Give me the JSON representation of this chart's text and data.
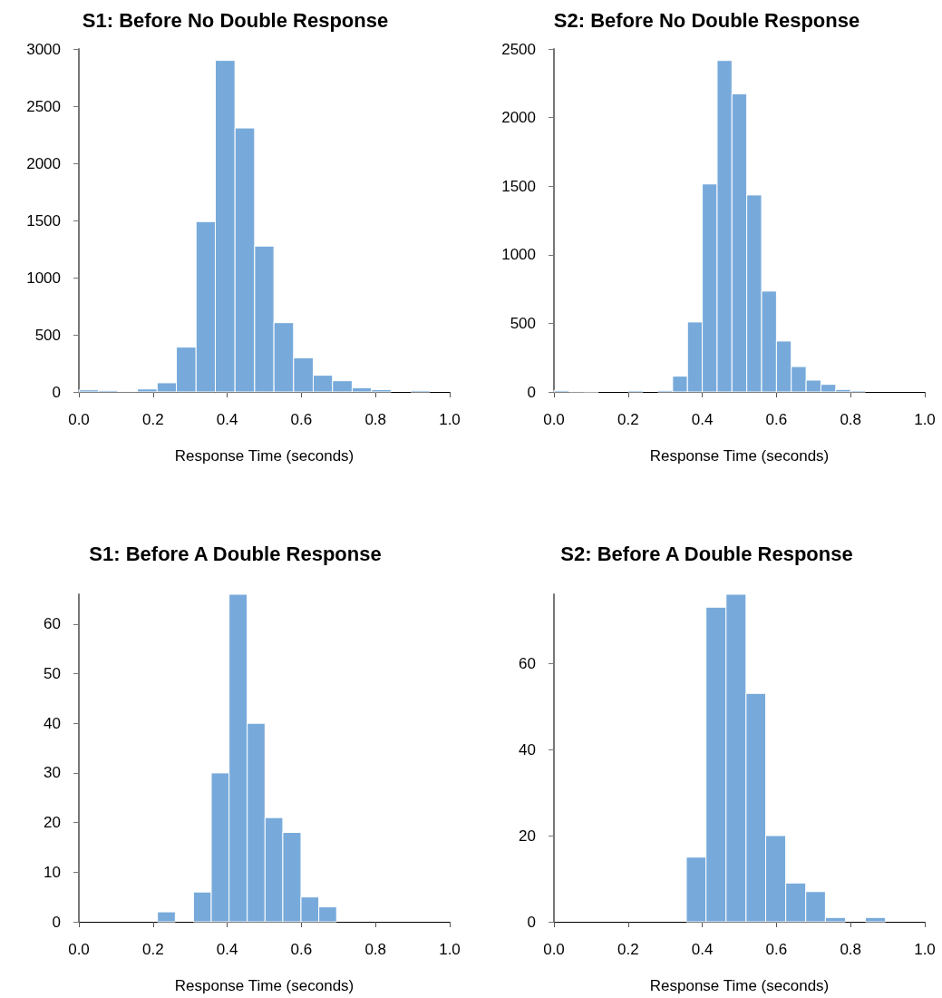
{
  "chart_data": [
    {
      "type": "histogram",
      "title": "S1: Before No Double Response",
      "xlabel": "Response Time (seconds)",
      "color": "#77aadb",
      "bins": [
        0,
        0.053,
        0.105,
        0.158,
        0.211,
        0.263,
        0.316,
        0.368,
        0.421,
        0.474,
        0.526,
        0.579,
        0.632,
        0.684,
        0.737,
        0.789,
        0.842,
        0.895,
        0.947
      ],
      "values": [
        18,
        13,
        5,
        26,
        80,
        392,
        1490,
        2900,
        2309,
        1276,
        606,
        299,
        146,
        98,
        37,
        21,
        0,
        13
      ],
      "xlim": [
        0,
        1
      ],
      "xticks": [
        {
          "value": 0,
          "label": "0.0"
        },
        {
          "value": 0.2,
          "label": "0.2"
        },
        {
          "value": 0.4,
          "label": "0.4"
        },
        {
          "value": 0.6,
          "label": "0.6"
        },
        {
          "value": 0.8,
          "label": "0.8"
        },
        {
          "value": 1,
          "label": "1.0"
        }
      ],
      "ylim": [
        0,
        3000
      ],
      "yticks": [
        0,
        500,
        1000,
        1500,
        2000,
        2500,
        3000
      ]
    },
    {
      "type": "histogram",
      "title": "S2: Before No Double Response",
      "xlabel": "Response Time (seconds)",
      "color": "#77aadb",
      "bins": [
        0,
        0.04,
        0.08,
        0.12,
        0.16,
        0.2,
        0.24,
        0.28,
        0.32,
        0.36,
        0.4,
        0.44,
        0.48,
        0.52,
        0.56,
        0.6,
        0.64,
        0.68,
        0.72,
        0.76,
        0.8,
        0.84
      ],
      "values": [
        11,
        2,
        1,
        0,
        0,
        9,
        null,
        11,
        115,
        510,
        1516,
        2416,
        2173,
        1436,
        735,
        371,
        185,
        86,
        55,
        18,
        9
      ],
      "xlim": [
        0,
        1
      ],
      "xticks": [
        {
          "value": 0,
          "label": "0.0"
        },
        {
          "value": 0.2,
          "label": "0.2"
        },
        {
          "value": 0.4,
          "label": "0.4"
        },
        {
          "value": 0.6,
          "label": "0.6"
        },
        {
          "value": 0.8,
          "label": "0.8"
        },
        {
          "value": 1,
          "label": "1.0"
        }
      ],
      "ylim": [
        0,
        2500
      ],
      "yticks": [
        0,
        500,
        1000,
        1500,
        2000,
        2500
      ]
    },
    {
      "type": "histogram",
      "title": "S1: Before A Double Response",
      "xlabel": "Response Time (seconds)",
      "color": "#77aadb",
      "bins": [
        0.212,
        0.26,
        0.309,
        0.357,
        0.405,
        0.454,
        0.502,
        0.55,
        0.599,
        0.647,
        0.695
      ],
      "values": [
        2,
        0,
        6,
        30,
        66,
        40,
        21,
        18,
        5,
        3
      ],
      "xlim": [
        0,
        1
      ],
      "xticks": [
        {
          "value": 0,
          "label": "0.0"
        },
        {
          "value": 0.2,
          "label": "0.2"
        },
        {
          "value": 0.4,
          "label": "0.4"
        },
        {
          "value": 0.6,
          "label": "0.6"
        },
        {
          "value": 0.8,
          "label": "0.8"
        },
        {
          "value": 1,
          "label": "1.0"
        }
      ],
      "ylim": [
        0,
        66
      ],
      "yticks": [
        0,
        10,
        20,
        30,
        40,
        50,
        60
      ]
    },
    {
      "type": "histogram",
      "title": "S2: Before A Double Response",
      "xlabel": "Response Time (seconds)",
      "color": "#77aadb",
      "bins": [
        0.357,
        0.41,
        0.464,
        0.518,
        0.571,
        0.625,
        0.679,
        0.732,
        0.786,
        0.84,
        0.894
      ],
      "values": [
        15,
        73,
        76,
        53,
        20,
        9,
        7,
        1,
        0,
        1
      ],
      "xlim": [
        0,
        1
      ],
      "xticks": [
        {
          "value": 0,
          "label": "0.0"
        },
        {
          "value": 0.2,
          "label": "0.2"
        },
        {
          "value": 0.4,
          "label": "0.4"
        },
        {
          "value": 0.6,
          "label": "0.6"
        },
        {
          "value": 0.8,
          "label": "0.8"
        },
        {
          "value": 1,
          "label": "1.0"
        }
      ],
      "ylim": [
        0,
        76
      ],
      "yticks": [
        0,
        20,
        40,
        60
      ]
    }
  ]
}
